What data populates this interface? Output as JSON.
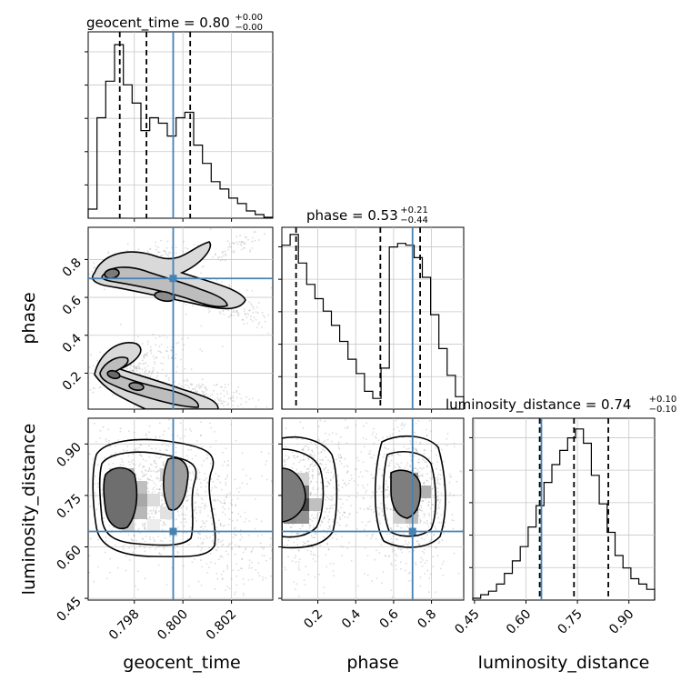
{
  "chart_data": {
    "type": "corner",
    "parameters": [
      "geocent_time",
      "phase",
      "luminosity_distance"
    ],
    "titles": [
      {
        "name": "geocent_time",
        "text": "geocent_time = 0.80",
        "plus": "+0.00",
        "minus": "−0.00"
      },
      {
        "name": "phase",
        "text": "phase = 0.53",
        "plus": "+0.21",
        "minus": "−0.44"
      },
      {
        "name": "luminosity_distance",
        "text": "luminosity_distance = 0.74",
        "plus": "+0.10",
        "minus": "−0.10"
      }
    ],
    "truths": {
      "geocent_time": 0.7996,
      "phase": 0.7,
      "luminosity_distance": 0.645
    },
    "ranges": {
      "geocent_time": [
        0.7961,
        0.8037
      ],
      "phase": [
        0.01,
        0.97
      ],
      "luminosity_distance": [
        0.445,
        0.975
      ]
    },
    "ticks": {
      "geocent_time": [
        "0.798",
        "0.800",
        "0.802"
      ],
      "phase": [
        "0.2",
        "0.4",
        "0.6",
        "0.8"
      ],
      "luminosity_distance": [
        "0.45",
        "0.60",
        "0.75",
        "0.90"
      ]
    },
    "quantiles": {
      "geocent_time": [
        0.7974,
        0.7985,
        0.8003
      ],
      "phase": [
        0.085,
        0.53,
        0.74
      ],
      "luminosity_distance": [
        0.64,
        0.74,
        0.84
      ]
    },
    "histograms": {
      "geocent_time": [
        0.05,
        0.55,
        0.75,
        0.95,
        0.73,
        0.63,
        0.48,
        0.55,
        0.52,
        0.45,
        0.55,
        0.58,
        0.4,
        0.3,
        0.2,
        0.16,
        0.11,
        0.08,
        0.04,
        0.02,
        0.005
      ],
      "phase": [
        0.92,
        0.98,
        0.82,
        0.7,
        0.62,
        0.55,
        0.47,
        0.38,
        0.28,
        0.2,
        0.1,
        0.06,
        0.23,
        0.91,
        0.93,
        0.92,
        0.85,
        0.74,
        0.53,
        0.34,
        0.19,
        0.07
      ],
      "luminosity_distance": [
        0.01,
        0.03,
        0.05,
        0.09,
        0.15,
        0.22,
        0.3,
        0.41,
        0.53,
        0.66,
        0.76,
        0.84,
        0.91,
        0.96,
        0.88,
        0.7,
        0.54,
        0.38,
        0.25,
        0.18,
        0.12,
        0.09,
        0.06
      ]
    },
    "grid": true,
    "truth_color": "#4682b4"
  }
}
